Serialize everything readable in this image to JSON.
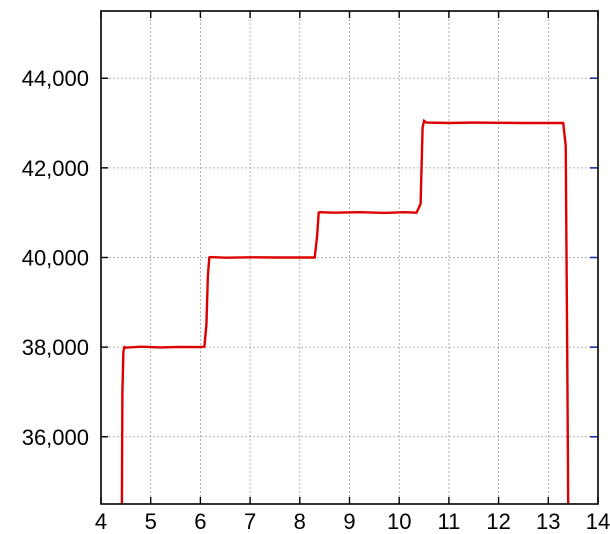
{
  "chart_data": {
    "type": "line",
    "title": "",
    "xlabel": "",
    "ylabel": "",
    "xlim": [
      4,
      14
    ],
    "ylim": [
      34500,
      45500
    ],
    "x_ticks": [
      4,
      5,
      6,
      7,
      8,
      9,
      10,
      11,
      12,
      13,
      14
    ],
    "x_tick_labels": [
      "4",
      "5",
      "6",
      "7",
      "8",
      "9",
      "10",
      "11",
      "12",
      "13",
      "14"
    ],
    "y_ticks": [
      36000,
      38000,
      40000,
      42000,
      44000
    ],
    "y_tick_labels": [
      "36,000",
      "38,000",
      "40,000",
      "42,000",
      "44,000"
    ],
    "grid": true,
    "legend": "none",
    "colors": {
      "line": "#dd0000",
      "tick_right": "#1a2fa0",
      "axis": "#000000",
      "grid": "#9a9a9a"
    },
    "series": [
      {
        "x": [
          4.42,
          4.43,
          4.45,
          4.47,
          4.5,
          4.8,
          5.2,
          5.6,
          6.0,
          6.08,
          6.12,
          6.15,
          6.18,
          6.2,
          6.5,
          7.0,
          7.5,
          8.0,
          8.3,
          8.35,
          8.38,
          8.4,
          8.7,
          9.2,
          9.7,
          10.1,
          10.35,
          10.43,
          10.47,
          10.5,
          10.55,
          11.0,
          11.5,
          12.0,
          12.5,
          13.0,
          13.3,
          13.35,
          13.38,
          13.4
        ],
        "y": [
          34500,
          37000,
          37900,
          38000,
          37990,
          38010,
          37995,
          38005,
          38000,
          38010,
          38500,
          39600,
          40000,
          40010,
          39995,
          40005,
          40000,
          40000,
          40000,
          40500,
          41000,
          41010,
          41000,
          41010,
          40995,
          41010,
          41000,
          41200,
          42900,
          43050,
          43010,
          43000,
          43010,
          43005,
          43000,
          43000,
          43000,
          42500,
          38000,
          34500
        ]
      }
    ]
  }
}
